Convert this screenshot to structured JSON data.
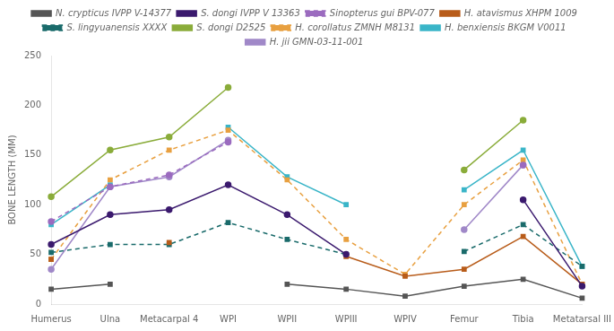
{
  "chart_data": {
    "type": "line",
    "categories": [
      "Humerus",
      "Ulna",
      "Metacarpal 4",
      "WPI",
      "WPII",
      "WPIII",
      "WPIV",
      "Femur",
      "Tibia",
      "Metatarsal III"
    ],
    "series": [
      {
        "name": "N. crypticus IVPP V-14377",
        "color": "#555555",
        "marker": "square",
        "line_style": "solid",
        "values": [
          15,
          20,
          null,
          null,
          20,
          15,
          8,
          18,
          25,
          6
        ]
      },
      {
        "name": "S. dongi IVPP V 13363",
        "color": "#3b1a6e",
        "marker": "circle",
        "line_style": "solid",
        "values": [
          60,
          90,
          95,
          120,
          90,
          50,
          null,
          null,
          105,
          18
        ]
      },
      {
        "name": "Sinopterus gui BPV-077",
        "color": "#9b6bbf",
        "marker": "circle",
        "line_style": "dashed",
        "values": [
          83,
          118,
          130,
          163,
          null,
          null,
          null,
          null,
          140,
          null
        ]
      },
      {
        "name": "H. atavismus XHPM 1009",
        "color": "#b85c1a",
        "marker": "square",
        "line_style": "solid",
        "values": [
          45,
          null,
          62,
          null,
          null,
          48,
          28,
          35,
          68,
          20
        ]
      },
      {
        "name": "S. lingyuanensis XXXX",
        "color": "#1a6b6b",
        "marker": "square",
        "line_style": "dashed",
        "values": [
          52,
          60,
          60,
          82,
          65,
          50,
          null,
          53,
          80,
          38
        ]
      },
      {
        "name": "S. dongi D2525",
        "color": "#8aac3a",
        "marker": "circle",
        "line_style": "solid",
        "values": [
          108,
          155,
          168,
          218,
          null,
          null,
          null,
          135,
          185,
          null
        ]
      },
      {
        "name": "H. corollatus ZMNH M8131",
        "color": "#e8a040",
        "marker": "square",
        "line_style": "dashed",
        "values": [
          45,
          125,
          155,
          175,
          125,
          65,
          30,
          100,
          145,
          20
        ]
      },
      {
        "name": "H. benxiensis BKGM V0011",
        "color": "#3ab5c8",
        "marker": "square",
        "line_style": "solid",
        "values": [
          80,
          120,
          null,
          178,
          128,
          100,
          null,
          115,
          155,
          38
        ]
      },
      {
        "name": "H. jii GMN-03-11-001",
        "color": "#a088c8",
        "marker": "circle",
        "line_style": "solid",
        "values": [
          35,
          118,
          128,
          165,
          null,
          null,
          null,
          75,
          140,
          null
        ]
      }
    ],
    "y_label": "BONE LENGTH (MM)",
    "ylim": [
      0,
      250
    ],
    "yticks": [
      0,
      50,
      100,
      150,
      200,
      250
    ],
    "grid": false,
    "legend": "top"
  }
}
